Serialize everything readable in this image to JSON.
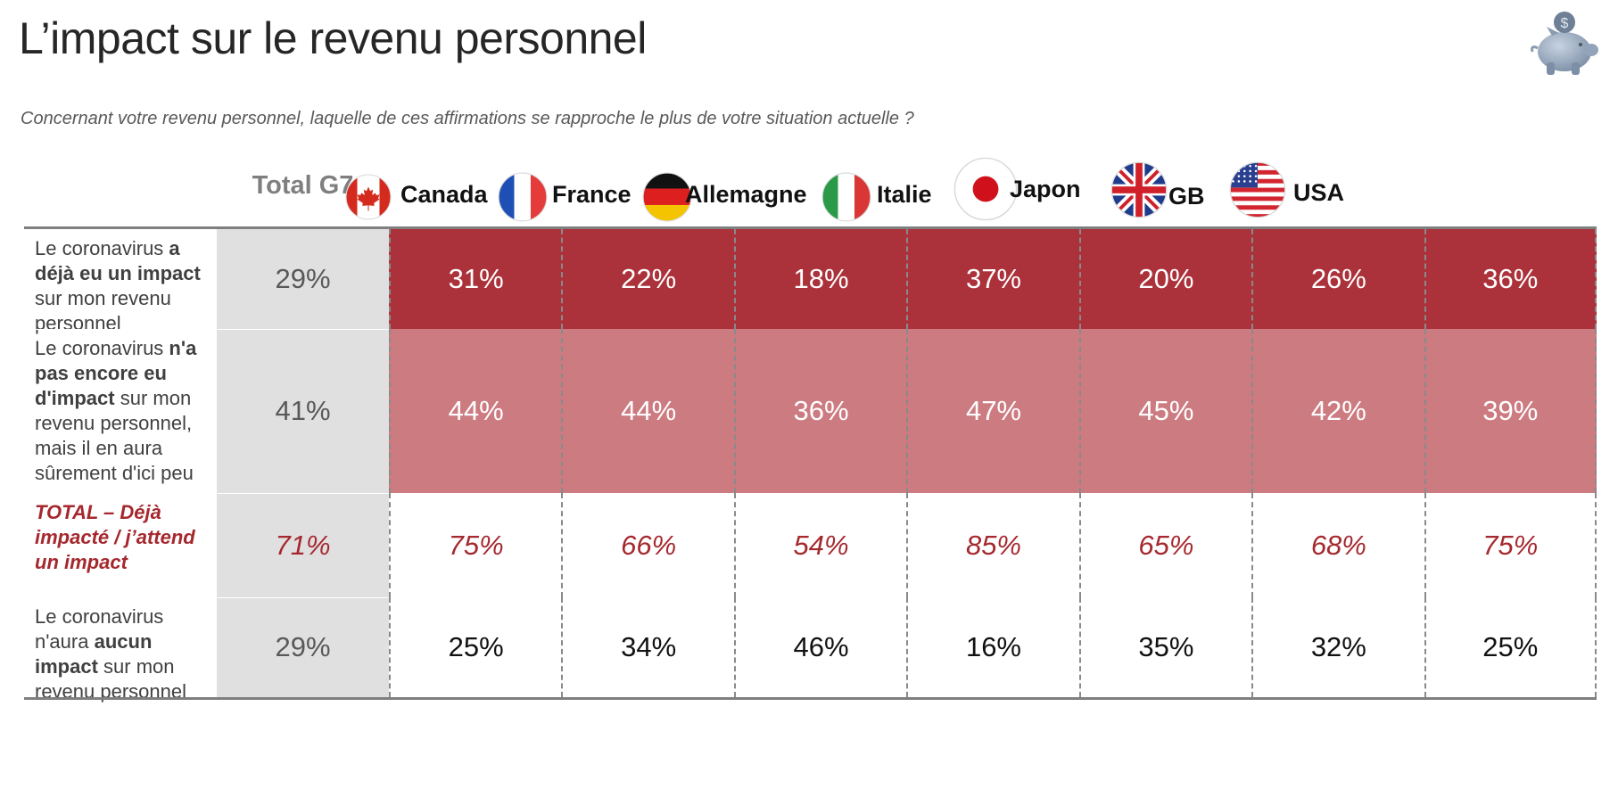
{
  "title": "L’impact sur le revenu personnel",
  "subtitle": "Concernant votre revenu personnel, laquelle de ces affirmations se rapproche le plus de votre situation actuelle ?",
  "icons": {
    "corner": "piggy-bank-icon"
  },
  "colors": {
    "row1": "#ab323a",
    "row2": "#cc7b81",
    "accent": "#a5282e",
    "total_column": "#e0e0e0"
  },
  "chart_data": {
    "type": "table",
    "total_header": "Total G7",
    "countries": [
      {
        "name": "Canada",
        "flag": "canada-flag-icon"
      },
      {
        "name": "France",
        "flag": "france-flag-icon"
      },
      {
        "name": "Allemagne",
        "flag": "germany-flag-icon"
      },
      {
        "name": "Italie",
        "flag": "italy-flag-icon"
      },
      {
        "name": "Japon",
        "flag": "japan-flag-icon"
      },
      {
        "name": "GB",
        "flag": "uk-flag-icon"
      },
      {
        "name": "USA",
        "flag": "usa-flag-icon"
      }
    ],
    "rows": [
      {
        "label": [
          {
            "t": "Le coronavirus ",
            "b": false
          },
          {
            "t": "a déjà eu un impact",
            "b": true
          },
          {
            "t": " sur mon revenu personnel",
            "b": false
          }
        ],
        "total": "29%",
        "values": [
          "31%",
          "22%",
          "18%",
          "37%",
          "20%",
          "26%",
          "36%"
        ]
      },
      {
        "label": [
          {
            "t": "Le coronavirus ",
            "b": false
          },
          {
            "t": "n'a pas encore eu d'impact",
            "b": true
          },
          {
            "t": " sur mon revenu personnel, mais il en aura sûrement d'ici peu",
            "b": false
          }
        ],
        "total": "41%",
        "values": [
          "44%",
          "44%",
          "36%",
          "47%",
          "45%",
          "42%",
          "39%"
        ]
      },
      {
        "label": [
          {
            "t": "TOTAL – Déjà impacté / j’attend un impact",
            "b": true
          }
        ],
        "total": "71%",
        "values": [
          "75%",
          "66%",
          "54%",
          "85%",
          "65%",
          "68%",
          "75%"
        ]
      },
      {
        "label": [
          {
            "t": "Le coronavirus n'aura ",
            "b": false
          },
          {
            "t": "aucun impact",
            "b": true
          },
          {
            "t": " sur mon revenu personnel",
            "b": false
          }
        ],
        "total": "29%",
        "values": [
          "25%",
          "34%",
          "46%",
          "16%",
          "35%",
          "32%",
          "25%"
        ]
      }
    ]
  }
}
